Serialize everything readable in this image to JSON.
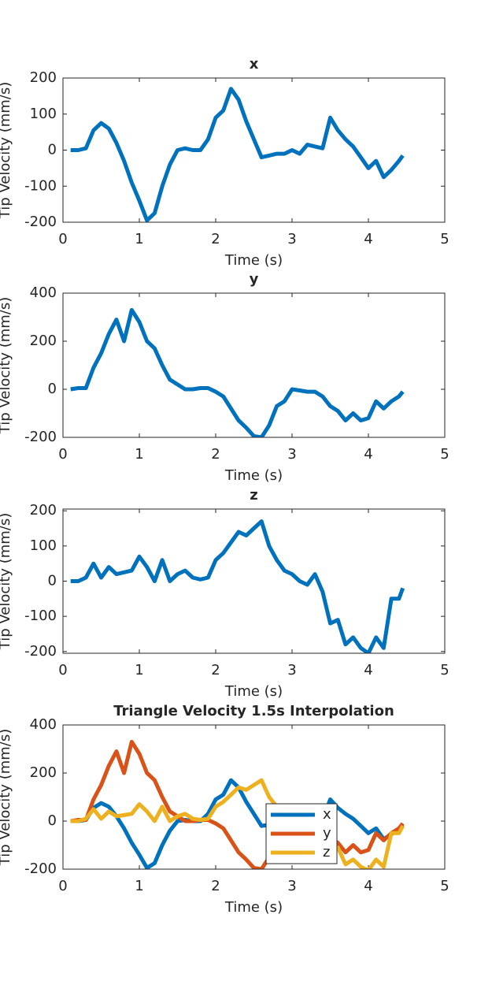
{
  "chart_data": [
    {
      "type": "line",
      "title": "x",
      "xlabel": "Time (s)",
      "ylabel": "Tip Velocity (mm/s)",
      "x": [
        0.1,
        0.2,
        0.3,
        0.4,
        0.5,
        0.6,
        0.7,
        0.8,
        0.9,
        1.0,
        1.1,
        1.2,
        1.3,
        1.4,
        1.5,
        1.6,
        1.7,
        1.8,
        1.9,
        2.0,
        2.1,
        2.2,
        2.3,
        2.4,
        2.5,
        2.6,
        2.7,
        2.8,
        2.9,
        3.0,
        3.1,
        3.2,
        3.3,
        3.4,
        3.5,
        3.6,
        3.7,
        3.8,
        3.9,
        4.0,
        4.1,
        4.2,
        4.3,
        4.4,
        4.45
      ],
      "values": [
        0,
        0,
        5,
        55,
        75,
        60,
        20,
        -30,
        -90,
        -140,
        -195,
        -175,
        -100,
        -40,
        0,
        5,
        0,
        0,
        30,
        90,
        110,
        170,
        140,
        80,
        30,
        -20,
        -15,
        -10,
        -10,
        0,
        -10,
        15,
        10,
        5,
        90,
        55,
        30,
        10,
        -20,
        -50,
        -30,
        -75,
        -55,
        -30,
        -15
      ],
      "color": "#0072BD",
      "xlim": [
        0,
        5
      ],
      "ylim": [
        -200,
        200
      ],
      "xticks": [
        0,
        1,
        2,
        3,
        4,
        5
      ],
      "yticks": [
        -200,
        -100,
        0,
        100,
        200
      ]
    },
    {
      "type": "line",
      "title": "y",
      "xlabel": "Time (s)",
      "ylabel": "Tip Velocity (mm/s)",
      "x": [
        0.1,
        0.2,
        0.3,
        0.4,
        0.5,
        0.6,
        0.7,
        0.8,
        0.9,
        1.0,
        1.1,
        1.2,
        1.3,
        1.4,
        1.5,
        1.6,
        1.7,
        1.8,
        1.9,
        2.0,
        2.1,
        2.2,
        2.3,
        2.4,
        2.5,
        2.6,
        2.7,
        2.8,
        2.9,
        3.0,
        3.1,
        3.2,
        3.3,
        3.4,
        3.5,
        3.6,
        3.7,
        3.8,
        3.9,
        4.0,
        4.1,
        4.2,
        4.3,
        4.4,
        4.45
      ],
      "values": [
        0,
        5,
        5,
        90,
        150,
        230,
        290,
        200,
        330,
        280,
        200,
        170,
        100,
        40,
        20,
        0,
        0,
        5,
        5,
        -10,
        -30,
        -80,
        -130,
        -160,
        -195,
        -200,
        -150,
        -70,
        -50,
        0,
        -5,
        -10,
        -10,
        -30,
        -70,
        -90,
        -130,
        -100,
        -130,
        -120,
        -50,
        -80,
        -50,
        -30,
        -10
      ],
      "color": "#0072BD",
      "xlim": [
        0,
        5
      ],
      "ylim": [
        -200,
        400
      ],
      "xticks": [
        0,
        1,
        2,
        3,
        4,
        5
      ],
      "yticks": [
        -200,
        0,
        200,
        400
      ]
    },
    {
      "type": "line",
      "title": "z",
      "xlabel": "Time (s)",
      "ylabel": "Tip Velocity (mm/s)",
      "x": [
        0.1,
        0.2,
        0.3,
        0.4,
        0.5,
        0.6,
        0.7,
        0.8,
        0.9,
        1.0,
        1.1,
        1.2,
        1.3,
        1.4,
        1.5,
        1.6,
        1.7,
        1.8,
        1.9,
        2.0,
        2.1,
        2.2,
        2.3,
        2.4,
        2.5,
        2.6,
        2.7,
        2.8,
        2.9,
        3.0,
        3.1,
        3.2,
        3.3,
        3.4,
        3.5,
        3.6,
        3.7,
        3.8,
        3.9,
        4.0,
        4.1,
        4.2,
        4.3,
        4.4,
        4.45
      ],
      "values": [
        0,
        0,
        10,
        50,
        10,
        40,
        20,
        25,
        30,
        70,
        40,
        0,
        60,
        0,
        20,
        30,
        10,
        5,
        10,
        60,
        80,
        110,
        140,
        130,
        150,
        170,
        100,
        60,
        30,
        20,
        0,
        -10,
        20,
        -30,
        -120,
        -110,
        -180,
        -160,
        -190,
        -205,
        -160,
        -190,
        -50,
        -50,
        -20
      ],
      "color": "#0072BD",
      "xlim": [
        0,
        5
      ],
      "ylim": [
        -205,
        205
      ],
      "xticks": [
        0,
        1,
        2,
        3,
        4,
        5
      ],
      "yticks": [
        -200,
        -100,
        0,
        100,
        200
      ]
    },
    {
      "type": "line",
      "title": "Triangle Velocity 1.5s Interpolation",
      "xlabel": "Time (s)",
      "ylabel": "Tip Velocity (mm/s)",
      "x": [
        0.1,
        0.2,
        0.3,
        0.4,
        0.5,
        0.6,
        0.7,
        0.8,
        0.9,
        1.0,
        1.1,
        1.2,
        1.3,
        1.4,
        1.5,
        1.6,
        1.7,
        1.8,
        1.9,
        2.0,
        2.1,
        2.2,
        2.3,
        2.4,
        2.5,
        2.6,
        2.7,
        2.8,
        2.9,
        3.0,
        3.1,
        3.2,
        3.3,
        3.4,
        3.5,
        3.6,
        3.7,
        3.8,
        3.9,
        4.0,
        4.1,
        4.2,
        4.3,
        4.4,
        4.45
      ],
      "series": [
        {
          "name": "x",
          "color": "#0072BD",
          "values": [
            0,
            0,
            5,
            55,
            75,
            60,
            20,
            -30,
            -90,
            -140,
            -195,
            -175,
            -100,
            -40,
            0,
            5,
            0,
            0,
            30,
            90,
            110,
            170,
            140,
            80,
            30,
            -20,
            -15,
            -10,
            -10,
            0,
            -10,
            15,
            10,
            5,
            90,
            55,
            30,
            10,
            -20,
            -50,
            -30,
            -75,
            -55,
            -30,
            -15
          ]
        },
        {
          "name": "y",
          "color": "#D95319",
          "values": [
            0,
            5,
            5,
            90,
            150,
            230,
            290,
            200,
            330,
            280,
            200,
            170,
            100,
            40,
            20,
            0,
            0,
            5,
            5,
            -10,
            -30,
            -80,
            -130,
            -160,
            -195,
            -200,
            -150,
            -70,
            -50,
            0,
            -5,
            -10,
            -10,
            -30,
            -70,
            -90,
            -130,
            -100,
            -130,
            -120,
            -50,
            -80,
            -50,
            -30,
            -10
          ]
        },
        {
          "name": "z",
          "color": "#EDB120",
          "values": [
            0,
            0,
            10,
            50,
            10,
            40,
            20,
            25,
            30,
            70,
            40,
            0,
            60,
            0,
            20,
            30,
            10,
            5,
            10,
            60,
            80,
            110,
            140,
            130,
            150,
            170,
            100,
            60,
            30,
            20,
            0,
            -10,
            20,
            -30,
            -120,
            -110,
            -180,
            -160,
            -190,
            -205,
            -160,
            -190,
            -50,
            -50,
            -20
          ]
        }
      ],
      "xlim": [
        0,
        5
      ],
      "ylim": [
        -200,
        400
      ],
      "xticks": [
        0,
        1,
        2,
        3,
        4,
        5
      ],
      "yticks": [
        -200,
        0,
        200,
        400
      ]
    }
  ]
}
